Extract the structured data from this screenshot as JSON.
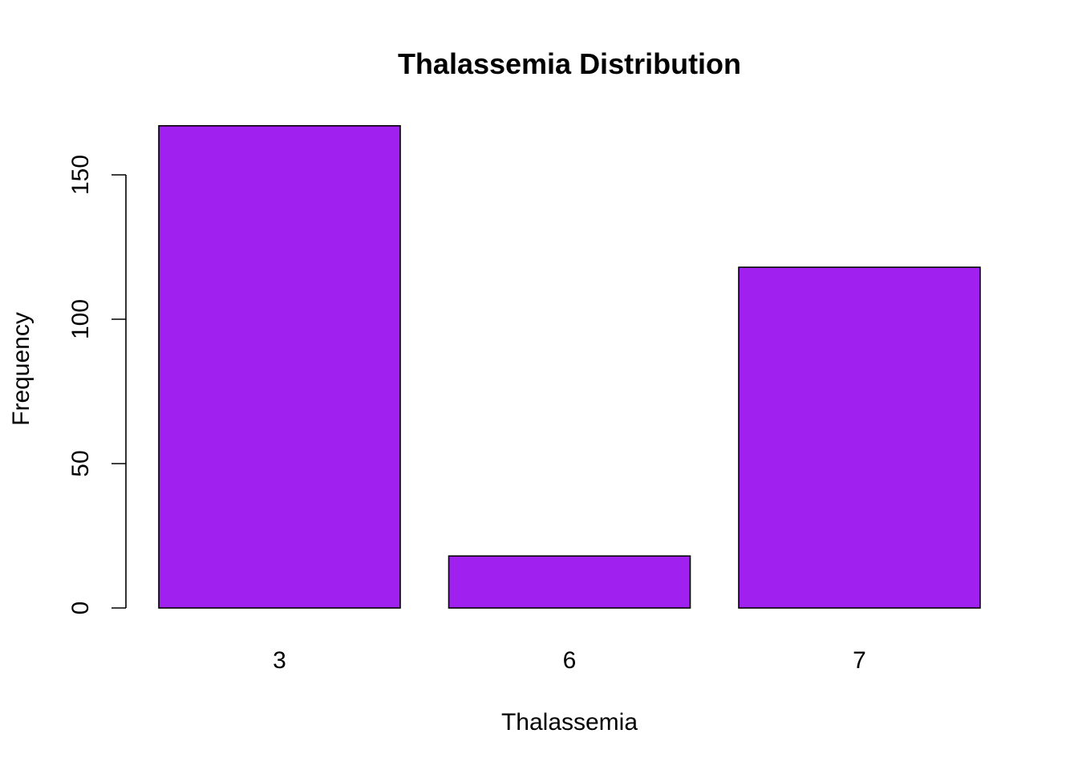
{
  "chart_data": {
    "type": "bar",
    "title": "Thalassemia Distribution",
    "xlabel": "Thalassemia",
    "ylabel": "Frequency",
    "categories": [
      "3",
      "6",
      "7"
    ],
    "values": [
      167,
      18,
      118
    ],
    "ylim": [
      0,
      150
    ],
    "yticks": [
      0,
      50,
      100,
      150
    ],
    "ytick_labels": [
      "0",
      "50",
      "100",
      "150"
    ],
    "bar_color": "#A020F0",
    "grid": false,
    "legend": "none"
  }
}
